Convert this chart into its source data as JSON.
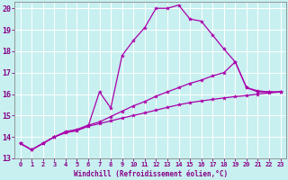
{
  "xlabel": "Windchill (Refroidissement éolien,°C)",
  "bg_color": "#c8f0f0",
  "grid_color": "#ffffff",
  "line_color": "#aa00aa",
  "xlim": [
    -0.5,
    23.5
  ],
  "ylim": [
    13,
    20.3
  ],
  "xticks": [
    0,
    1,
    2,
    3,
    4,
    5,
    6,
    7,
    8,
    9,
    10,
    11,
    12,
    13,
    14,
    15,
    16,
    17,
    18,
    19,
    20,
    21,
    22,
    23
  ],
  "yticks": [
    13,
    14,
    15,
    16,
    17,
    18,
    19,
    20
  ],
  "line1_x": [
    0,
    1,
    2,
    3,
    4,
    5,
    6,
    7,
    8,
    9,
    10,
    11,
    12,
    13,
    14,
    15,
    16,
    17,
    18,
    19,
    20,
    21,
    22,
    23
  ],
  "line1_y": [
    13.7,
    13.4,
    13.7,
    14.0,
    14.2,
    14.3,
    14.5,
    16.1,
    15.35,
    17.8,
    18.5,
    19.1,
    20.0,
    20.0,
    20.15,
    19.5,
    19.4,
    18.75,
    18.1,
    17.5,
    16.3,
    16.1,
    16.1,
    16.1
  ],
  "line2_x": [
    0,
    1,
    2,
    3,
    4,
    5,
    6,
    7,
    8,
    9,
    10,
    11,
    12,
    13,
    14,
    15,
    16,
    17,
    18,
    19,
    20,
    21,
    22,
    23
  ],
  "line2_y": [
    13.7,
    13.4,
    13.7,
    14.0,
    14.25,
    14.35,
    14.55,
    14.7,
    14.95,
    15.2,
    15.45,
    15.65,
    15.9,
    16.1,
    16.3,
    16.5,
    16.65,
    16.85,
    17.0,
    17.5,
    16.3,
    16.15,
    16.1,
    16.1
  ],
  "line3_x": [
    0,
    1,
    2,
    3,
    4,
    5,
    6,
    7,
    8,
    9,
    10,
    11,
    12,
    13,
    14,
    15,
    16,
    17,
    18,
    19,
    20,
    21,
    22,
    23
  ],
  "line3_y": [
    13.7,
    13.4,
    13.7,
    14.0,
    14.2,
    14.3,
    14.5,
    14.62,
    14.75,
    14.88,
    15.0,
    15.12,
    15.25,
    15.38,
    15.5,
    15.6,
    15.68,
    15.75,
    15.82,
    15.88,
    15.93,
    16.0,
    16.05,
    16.1
  ]
}
